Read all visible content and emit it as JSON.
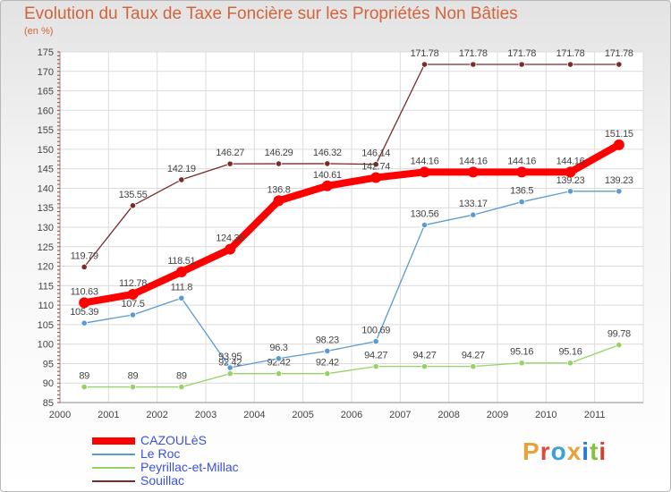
{
  "title": "Evolution du Taux de Taxe Foncière sur les Propriétés Non Bâties",
  "unit": "(en %)",
  "logo": {
    "text": "Proxiti",
    "colors": [
      "#e8a23c",
      "#e3483e",
      "#3aa0d8",
      "#e8a23c",
      "#2a7ad0",
      "#86c040",
      "#d8402c"
    ]
  },
  "chart_data": {
    "type": "line",
    "title": "Evolution du Taux de Taxe Foncière sur les Propriétés Non Bâties",
    "ylabel": "(en %)",
    "ylim": [
      85,
      175
    ],
    "yticks": [
      85,
      90,
      95,
      100,
      105,
      110,
      115,
      120,
      125,
      130,
      135,
      140,
      145,
      150,
      155,
      160,
      165,
      170,
      175
    ],
    "categories": [
      "2000",
      "2001",
      "2002",
      "2003",
      "2004",
      "2005",
      "2006",
      "2007",
      "2008",
      "2009",
      "2010",
      "2011"
    ],
    "series": [
      {
        "name": "Souillac",
        "color": "#7a2b2b",
        "values": [
          119.79,
          135.55,
          142.19,
          146.27,
          146.29,
          146.32,
          146.14,
          171.78,
          171.78,
          171.78,
          171.78,
          171.78
        ],
        "labels": [
          "119.79",
          "135.55",
          "142.19",
          "146.27",
          "146.29",
          "146.32",
          "146.14",
          "171.78",
          "171.78",
          "171.78",
          "171.78",
          "171.78"
        ]
      },
      {
        "name": "Peyrillac-et-Millac",
        "color": "#96d264",
        "values": [
          89,
          89,
          89,
          92.42,
          92.42,
          92.42,
          94.27,
          94.27,
          94.27,
          95.16,
          95.16,
          99.78
        ],
        "labels": [
          "89",
          "89",
          "89",
          "92.42",
          "92.42",
          "92.42",
          "94.27",
          "94.27",
          "94.27",
          "95.16",
          "95.16",
          "99.78"
        ]
      },
      {
        "name": "Le Roc",
        "color": "#5a9ad2",
        "values": [
          105.39,
          107.5,
          111.8,
          93.95,
          96.3,
          98.23,
          100.69,
          130.56,
          133.17,
          136.5,
          139.23,
          139.23
        ],
        "labels": [
          "105.39",
          "107.5",
          "111.8",
          "93.95",
          "96.3",
          "98.23",
          "100.69",
          "130.56",
          "133.17",
          "136.5",
          "139.23",
          "139.23"
        ]
      },
      {
        "name": "CAZOULèS",
        "color": "#ff0000",
        "values": [
          110.63,
          112.78,
          118.51,
          124.36,
          136.8,
          140.61,
          142.74,
          144.16,
          144.16,
          144.16,
          144.16,
          151.15
        ],
        "labels": [
          "110.63",
          "112.78",
          "118.51",
          "124.36",
          "136.8",
          "140.61",
          "142.74",
          "144.16",
          "144.16",
          "144.16",
          "144.16",
          "151.15"
        ]
      }
    ],
    "legend": [
      "CAZOULèS",
      "Le Roc",
      "Peyrillac-et-Millac",
      "Souillac"
    ]
  }
}
